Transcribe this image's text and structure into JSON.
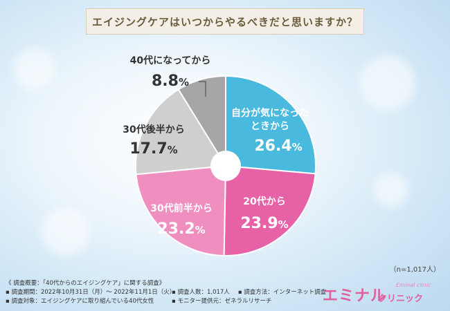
{
  "title": "エイジングケアはいつからやるべきだと思いますか？",
  "sample_note": "（n=1,017人）",
  "chart_data": {
    "type": "pie",
    "title": "エイジングケアはいつからやるべきだと思いますか？",
    "slices": [
      {
        "label": "自分が気になったときから",
        "value": 26.4,
        "color": "#4ab9de",
        "text_color": "#ffffff"
      },
      {
        "label": "20代から",
        "value": 23.9,
        "color": "#e761a7",
        "text_color": "#ffffff"
      },
      {
        "label": "30代前半から",
        "value": 23.2,
        "color": "#ef8fc0",
        "text_color": "#ffffff"
      },
      {
        "label": "30代後半から",
        "value": 17.7,
        "color": "#cfcfcf",
        "text_color": "#333333"
      },
      {
        "label": "40代になってから",
        "value": 8.8,
        "color": "#a6a6a6",
        "text_color": "#333333"
      }
    ],
    "unit": "%",
    "legend": "none"
  },
  "footer": {
    "overview": "《 調査概要：「40代からのエイジングケア」に関する調査》",
    "period": "▪ 調査期間：2022年10月31日（月）～ 2022年11月1日（火）",
    "count": "▪ 調査人数：1,017人",
    "method": "▪ 調査方法：インターネット調査",
    "target": "▪ 調査対象：エイジングケアに取り組んでいる40代女性",
    "provider": "▪ モニター提供元：ゼネラルリサーチ"
  },
  "logo": {
    "main": "エミナル",
    "sub": "クリニック",
    "tag": "Eminal clinic"
  }
}
